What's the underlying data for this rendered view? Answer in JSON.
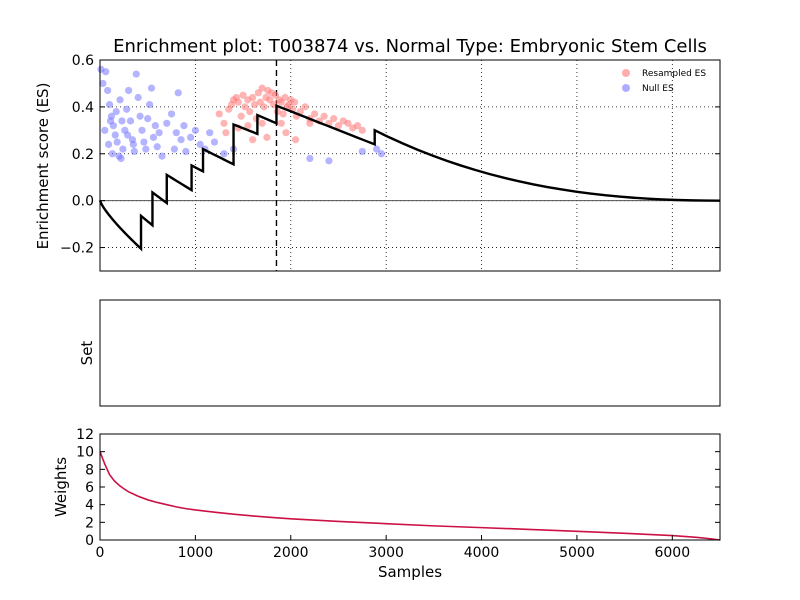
{
  "chart_data": {
    "title": "Enrichment plot: T003874 vs. Normal Type: Embryonic Stem Cells",
    "type": "line",
    "panels": [
      {
        "id": "es",
        "ylabel": "Enrichment score (ES)",
        "xlim": [
          0,
          6500
        ],
        "ylim": [
          -0.3,
          0.6
        ],
        "yticks": [
          -0.2,
          0.0,
          0.2,
          0.4,
          0.6
        ],
        "ytick_labels": [
          "−0.2",
          "0.0",
          "0.2",
          "0.4",
          "0.6"
        ],
        "xgrid": [
          1000,
          2000,
          3000,
          4000,
          5000,
          6000
        ],
        "grid": true,
        "zero_line": 0,
        "max_es_position": 1850,
        "legend": {
          "placement": "top-right",
          "entries": [
            {
              "label": "Resampled ES",
              "color": "#ff7777"
            },
            {
              "label": "Null ES",
              "color": "#7777ff"
            }
          ]
        },
        "running_es": {
          "color": "#000000",
          "hits": [
            {
              "x": 430,
              "before": -0.205,
              "after": -0.065
            },
            {
              "x": 550,
              "before": -0.105,
              "after": 0.035
            },
            {
              "x": 700,
              "before": -0.01,
              "after": 0.11
            },
            {
              "x": 960,
              "before": 0.045,
              "after": 0.15
            },
            {
              "x": 1080,
              "before": 0.125,
              "after": 0.22
            },
            {
              "x": 1400,
              "before": 0.155,
              "after": 0.325
            },
            {
              "x": 1650,
              "before": 0.285,
              "after": 0.365
            },
            {
              "x": 1850,
              "before": 0.33,
              "after": 0.405
            },
            {
              "x": 2880,
              "before": 0.24,
              "after": 0.3
            }
          ],
          "end": 6500
        },
        "resampled_es": [
          [
            1250,
            0.37
          ],
          [
            1300,
            0.33
          ],
          [
            1350,
            0.39
          ],
          [
            1380,
            0.41
          ],
          [
            1400,
            0.43
          ],
          [
            1430,
            0.44
          ],
          [
            1450,
            0.42
          ],
          [
            1480,
            0.36
          ],
          [
            1500,
            0.45
          ],
          [
            1520,
            0.4
          ],
          [
            1550,
            0.43
          ],
          [
            1570,
            0.38
          ],
          [
            1600,
            0.44
          ],
          [
            1620,
            0.41
          ],
          [
            1640,
            0.35
          ],
          [
            1660,
            0.46
          ],
          [
            1680,
            0.42
          ],
          [
            1700,
            0.48
          ],
          [
            1720,
            0.4
          ],
          [
            1740,
            0.44
          ],
          [
            1760,
            0.47
          ],
          [
            1780,
            0.43
          ],
          [
            1800,
            0.46
          ],
          [
            1820,
            0.41
          ],
          [
            1840,
            0.45
          ],
          [
            1860,
            0.38
          ],
          [
            1880,
            0.43
          ],
          [
            1900,
            0.42
          ],
          [
            1920,
            0.37
          ],
          [
            1940,
            0.44
          ],
          [
            1960,
            0.4
          ],
          [
            1980,
            0.41
          ],
          [
            2000,
            0.43
          ],
          [
            2020,
            0.39
          ],
          [
            2040,
            0.42
          ],
          [
            2060,
            0.36
          ],
          [
            2100,
            0.38
          ],
          [
            2150,
            0.4
          ],
          [
            2200,
            0.35
          ],
          [
            2250,
            0.37
          ],
          [
            2300,
            0.34
          ],
          [
            2350,
            0.36
          ],
          [
            2400,
            0.33
          ],
          [
            2450,
            0.35
          ],
          [
            2500,
            0.32
          ],
          [
            2550,
            0.34
          ],
          [
            2600,
            0.33
          ],
          [
            2650,
            0.31
          ],
          [
            2700,
            0.32
          ],
          [
            2750,
            0.3
          ],
          [
            1550,
            0.32
          ],
          [
            1600,
            0.26
          ],
          [
            1750,
            0.27
          ],
          [
            1950,
            0.29
          ],
          [
            2050,
            0.26
          ],
          [
            1320,
            0.29
          ],
          [
            1450,
            0.31
          ],
          [
            1700,
            0.33
          ],
          [
            2200,
            0.33
          ],
          [
            1900,
            0.33
          ]
        ],
        "null_es": [
          [
            10,
            0.56
          ],
          [
            30,
            0.5
          ],
          [
            60,
            0.55
          ],
          [
            80,
            0.47
          ],
          [
            100,
            0.41
          ],
          [
            120,
            0.36
          ],
          [
            140,
            0.32
          ],
          [
            160,
            0.28
          ],
          [
            180,
            0.25
          ],
          [
            200,
            0.19
          ],
          [
            220,
            0.18
          ],
          [
            240,
            0.22
          ],
          [
            260,
            0.3
          ],
          [
            280,
            0.39
          ],
          [
            300,
            0.47
          ],
          [
            320,
            0.34
          ],
          [
            340,
            0.26
          ],
          [
            360,
            0.21
          ],
          [
            380,
            0.54
          ],
          [
            400,
            0.44
          ],
          [
            420,
            0.36
          ],
          [
            440,
            0.3
          ],
          [
            460,
            0.25
          ],
          [
            480,
            0.22
          ],
          [
            500,
            0.35
          ],
          [
            520,
            0.41
          ],
          [
            540,
            0.48
          ],
          [
            560,
            0.27
          ],
          [
            580,
            0.32
          ],
          [
            600,
            0.23
          ],
          [
            620,
            0.29
          ],
          [
            650,
            0.19
          ],
          [
            700,
            0.33
          ],
          [
            750,
            0.37
          ],
          [
            780,
            0.22
          ],
          [
            800,
            0.29
          ],
          [
            820,
            0.46
          ],
          [
            850,
            0.26
          ],
          [
            880,
            0.32
          ],
          [
            900,
            0.21
          ],
          [
            950,
            0.27
          ],
          [
            1000,
            0.3
          ],
          [
            1050,
            0.24
          ],
          [
            1100,
            0.22
          ],
          [
            1150,
            0.29
          ],
          [
            1200,
            0.25
          ],
          [
            1300,
            0.2
          ],
          [
            1400,
            0.22
          ],
          [
            2200,
            0.18
          ],
          [
            2400,
            0.17
          ],
          [
            2750,
            0.21
          ],
          [
            2900,
            0.22
          ],
          [
            2950,
            0.2
          ],
          [
            50,
            0.3
          ],
          [
            90,
            0.24
          ],
          [
            130,
            0.2
          ],
          [
            170,
            0.38
          ],
          [
            230,
            0.34
          ],
          [
            290,
            0.28
          ],
          [
            350,
            0.24
          ],
          [
            110,
            0.34
          ],
          [
            210,
            0.43
          ]
        ]
      },
      {
        "id": "set",
        "ylabel": "Set",
        "xlim": [
          0,
          6500
        ]
      },
      {
        "id": "weights",
        "ylabel": "Weights",
        "xlabel": "Samples",
        "xlim": [
          0,
          6500
        ],
        "ylim": [
          0,
          12
        ],
        "yticks": [
          0,
          2,
          4,
          6,
          8,
          10,
          12
        ],
        "ytick_labels": [
          "0",
          "2",
          "4",
          "6",
          "8",
          "10",
          "12"
        ],
        "xticks": [
          0,
          1000,
          2000,
          3000,
          4000,
          5000,
          6000
        ],
        "xtick_labels": [
          "0",
          "1000",
          "2000",
          "3000",
          "4000",
          "5000",
          "6000"
        ],
        "series_color": "#cc1144",
        "values": [
          [
            0,
            10.0
          ],
          [
            25,
            9.3
          ],
          [
            50,
            8.6
          ],
          [
            75,
            8.0
          ],
          [
            100,
            7.4
          ],
          [
            150,
            6.7
          ],
          [
            200,
            6.2
          ],
          [
            250,
            5.8
          ],
          [
            300,
            5.45
          ],
          [
            400,
            4.95
          ],
          [
            500,
            4.55
          ],
          [
            600,
            4.25
          ],
          [
            700,
            4.0
          ],
          [
            800,
            3.75
          ],
          [
            900,
            3.55
          ],
          [
            1000,
            3.4
          ],
          [
            1200,
            3.15
          ],
          [
            1400,
            2.92
          ],
          [
            1600,
            2.72
          ],
          [
            1800,
            2.55
          ],
          [
            2000,
            2.4
          ],
          [
            2500,
            2.1
          ],
          [
            3000,
            1.85
          ],
          [
            3500,
            1.6
          ],
          [
            4000,
            1.4
          ],
          [
            4500,
            1.2
          ],
          [
            5000,
            0.98
          ],
          [
            5500,
            0.76
          ],
          [
            6000,
            0.5
          ],
          [
            6250,
            0.3
          ],
          [
            6400,
            0.14
          ],
          [
            6500,
            0.0
          ]
        ]
      }
    ]
  }
}
